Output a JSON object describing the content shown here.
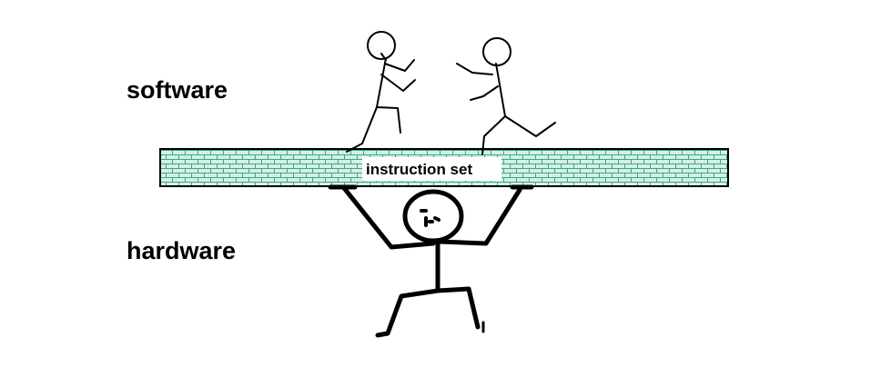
{
  "labels": {
    "software": "software",
    "hardware": "hardware",
    "instruction_set": "instruction set"
  },
  "colors": {
    "background": "#ffffff",
    "ink": "#000000",
    "brick_fill": "#d6efe4",
    "brick_mortar": "#3aa882",
    "label_box": "#ffffff"
  },
  "figures": {
    "upper_left": "running-stick-figure",
    "upper_right": "running-stick-figure",
    "lower": "lifting-stick-figure"
  }
}
